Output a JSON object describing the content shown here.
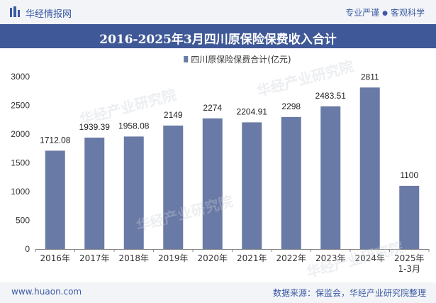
{
  "header": {
    "brand": "华经情报网",
    "tagline_left": "专业严谨",
    "tagline_right": "客观科学"
  },
  "title": "2016-2025年3月四川原保险保费收入合计",
  "footer": {
    "site": "www.huaon.com",
    "source": "数据来源：保监会，华经产业研究院整理"
  },
  "colors": {
    "bar": "#6a7aa6",
    "header_band": "#3f5897",
    "brand_text": "#3b5aa3"
  },
  "chart_data": {
    "type": "bar",
    "categories": [
      "2016年",
      "2017年",
      "2018年",
      "2019年",
      "2020年",
      "2021年",
      "2022年",
      "2023年",
      "2024年",
      "2025年\n1-3月"
    ],
    "series": [
      {
        "name": "四川原保险保费合计(亿元)",
        "values": [
          1712.08,
          1939.39,
          1958.08,
          2149,
          2274,
          2204.91,
          2298,
          2483.51,
          2811,
          1100
        ],
        "labels": [
          "1712.08",
          "1939.39",
          "1958.08",
          "2149",
          "2274",
          "2204.91",
          "2298",
          "2483.51",
          "2811",
          "1100"
        ]
      }
    ],
    "ylim": [
      0,
      3000
    ],
    "yticks": [
      0,
      500,
      1000,
      1500,
      2000,
      2500,
      3000
    ],
    "legend_position": "top-center",
    "grid": false
  }
}
